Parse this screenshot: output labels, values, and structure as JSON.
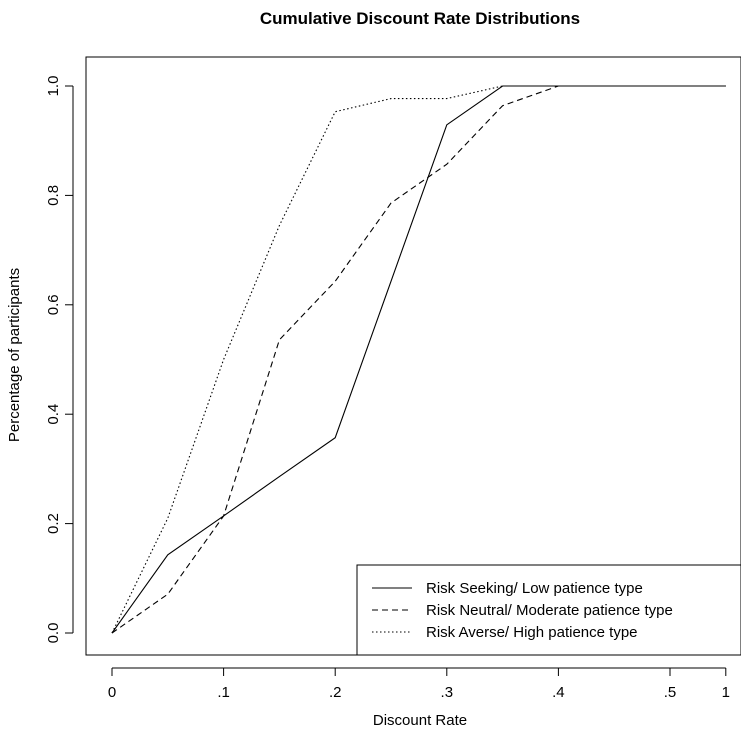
{
  "chart_data": {
    "type": "line",
    "title": "Cumulative Discount Rate Distributions",
    "xlabel": "Discount Rate",
    "ylabel": "Percentage of participants",
    "x_tick_labels": [
      "0",
      ".1",
      ".2",
      ".3",
      ".4",
      ".5",
      "1"
    ],
    "y_tick_labels": [
      "0.0",
      "0.2",
      "0.4",
      "0.6",
      "0.8",
      "1.0"
    ],
    "x": [
      0,
      0.05,
      0.1,
      0.15,
      0.2,
      0.25,
      0.3,
      0.35,
      0.4,
      0.5,
      1
    ],
    "ylim": [
      0,
      1
    ],
    "legend_position": "bottom-right",
    "series": [
      {
        "name": "Risk Seeking/ Low patience type",
        "line_style": "solid",
        "values": [
          0.0,
          0.143,
          0.214,
          0.286,
          0.357,
          0.643,
          0.929,
          1.0,
          1.0,
          1.0,
          1.0
        ]
      },
      {
        "name": "Risk Neutral/ Moderate patience type",
        "line_style": "dashed",
        "values": [
          0.0,
          0.071,
          0.214,
          0.536,
          0.643,
          0.786,
          0.857,
          0.964,
          1.0,
          1.0,
          1.0
        ]
      },
      {
        "name": "Risk Averse/ High patience type",
        "line_style": "dotted",
        "values": [
          0.0,
          0.21,
          0.5,
          0.745,
          0.953,
          0.977,
          0.977,
          1.0,
          1.0,
          1.0,
          1.0
        ]
      }
    ]
  }
}
